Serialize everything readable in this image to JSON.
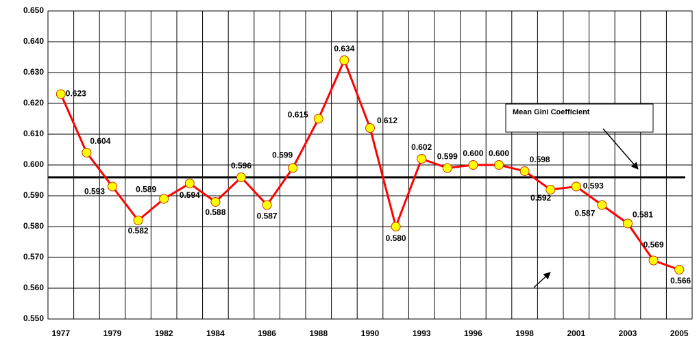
{
  "chart_data": {
    "type": "line",
    "categories": [
      "1977",
      null,
      "1979",
      null,
      "1982",
      null,
      "1984",
      null,
      "1986",
      null,
      "1988",
      null,
      "1990",
      null,
      "1993",
      null,
      "1996",
      null,
      "1998",
      null,
      "2001",
      null,
      "2003",
      null,
      "2005"
    ],
    "series": [
      {
        "color": "#ff0000",
        "marker_color": "#ffff00",
        "values": [
          0.623,
          0.604,
          0.593,
          0.582,
          0.589,
          0.594,
          0.588,
          0.596,
          0.587,
          0.599,
          0.615,
          0.634,
          0.612,
          0.58,
          0.602,
          0.599,
          0.6,
          0.6,
          0.598,
          0.592,
          0.593,
          0.587,
          0.581,
          0.569,
          0.566
        ],
        "value_labels": [
          "0.623",
          "0.604",
          "0.593",
          "0.582",
          "0.589",
          "0.594",
          "0.588",
          "0.596",
          "0.587",
          "0.599",
          "0.615",
          "0.634",
          "0.612",
          "0.580",
          "0.602",
          "0.599",
          "0.600",
          "0.600",
          "0.598",
          "0.592",
          "0.593",
          "0.587",
          "0.581",
          "0.569",
          "0.566"
        ]
      }
    ],
    "reference_line": {
      "value": 0.596,
      "color": "#000000"
    },
    "annotation": "Mean Gini Coefficient",
    "ylim": [
      0.55,
      0.65
    ],
    "yticks": [
      {
        "value": 0.55,
        "label": "0.550"
      },
      {
        "value": 0.56,
        "label": "0.560"
      },
      {
        "value": 0.57,
        "label": "0.570"
      },
      {
        "value": 0.58,
        "label": "0.580"
      },
      {
        "value": 0.59,
        "label": "0.590"
      },
      {
        "value": 0.6,
        "label": "0.600"
      },
      {
        "value": 0.61,
        "label": "0.610"
      },
      {
        "value": 0.62,
        "label": "0.620"
      },
      {
        "value": 0.63,
        "label": "0.630"
      },
      {
        "value": 0.64,
        "label": "0.640"
      },
      {
        "value": 0.65,
        "label": "0.650"
      }
    ],
    "grid": true
  }
}
